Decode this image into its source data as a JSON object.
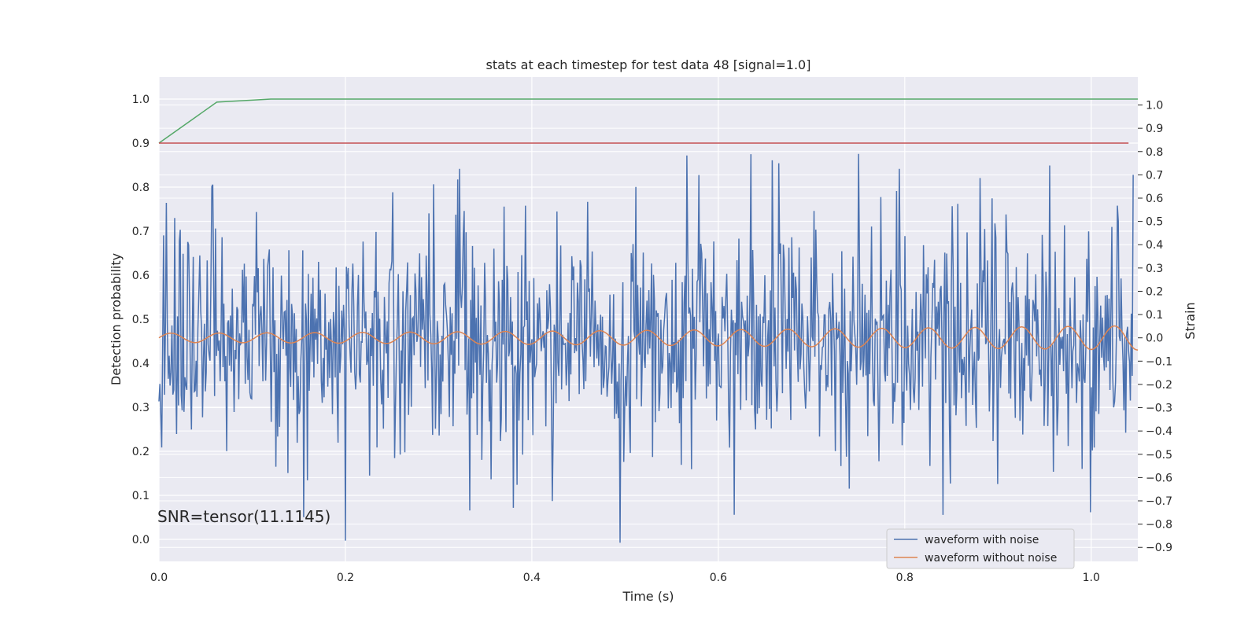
{
  "chart_data": {
    "type": "line",
    "title": "stats at each timestep for test data 48 [signal=1.0]",
    "xlabel": "Time (s)",
    "ylabel_left": "Detection probability",
    "ylabel_right": "Strain",
    "xlim": [
      0.0,
      1.05
    ],
    "ylim_left": [
      -0.05,
      1.05
    ],
    "ylim_right": [
      -0.96,
      1.12
    ],
    "grid": true,
    "legend_position": "lower-right",
    "x_ticks": [
      "0.0",
      "0.2",
      "0.4",
      "0.6",
      "0.8",
      "1.0"
    ],
    "y_ticks_left": [
      "0.0",
      "0.1",
      "0.2",
      "0.3",
      "0.4",
      "0.5",
      "0.6",
      "0.7",
      "0.8",
      "0.9",
      "1.0"
    ],
    "y_ticks_right": [
      "−0.9",
      "−0.8",
      "−0.7",
      "−0.6",
      "−0.5",
      "−0.4",
      "−0.3",
      "−0.2",
      "−0.1",
      "0.0",
      "0.1",
      "0.2",
      "0.3",
      "0.4",
      "0.5",
      "0.6",
      "0.7",
      "0.8",
      "0.9",
      "1.0"
    ],
    "annotation": "SNR=tensor(11.1145)",
    "series": [
      {
        "name": "waveform with noise",
        "axis": "right",
        "color": "#4c72b0",
        "description_values": "noisy strain, roughly Gaussian around 0 with std ~0.25, range -0.9 to 0.8, sampled every ~1 ms from 0 to 1.05 s",
        "peaks": [
          [
            0.005,
            0.44
          ],
          [
            0.057,
            0.65
          ],
          [
            0.155,
            -0.77
          ],
          [
            0.32,
            0.68
          ],
          [
            0.38,
            -0.73
          ],
          [
            0.495,
            -0.88
          ],
          [
            0.617,
            -0.76
          ],
          [
            0.665,
            0.75
          ],
          [
            0.75,
            0.79
          ],
          [
            0.955,
            0.74
          ],
          [
            1.045,
            0.7
          ]
        ]
      },
      {
        "name": "waveform without noise",
        "axis": "right",
        "color": "#dd8452",
        "description_values": "chirp signal centred at 0, amplitude ~0.02 at start growing to ~0.05, period ~0.05 s"
      },
      {
        "axis": "left",
        "color": "#55a868",
        "x": [
          0.0,
          0.062,
          0.12,
          1.05
        ],
        "y": [
          0.9,
          0.993,
          1.0,
          1.0
        ]
      },
      {
        "axis": "left",
        "color": "#c44e52",
        "x": [
          0.0,
          1.04
        ],
        "y": [
          0.9,
          0.9
        ]
      }
    ]
  }
}
